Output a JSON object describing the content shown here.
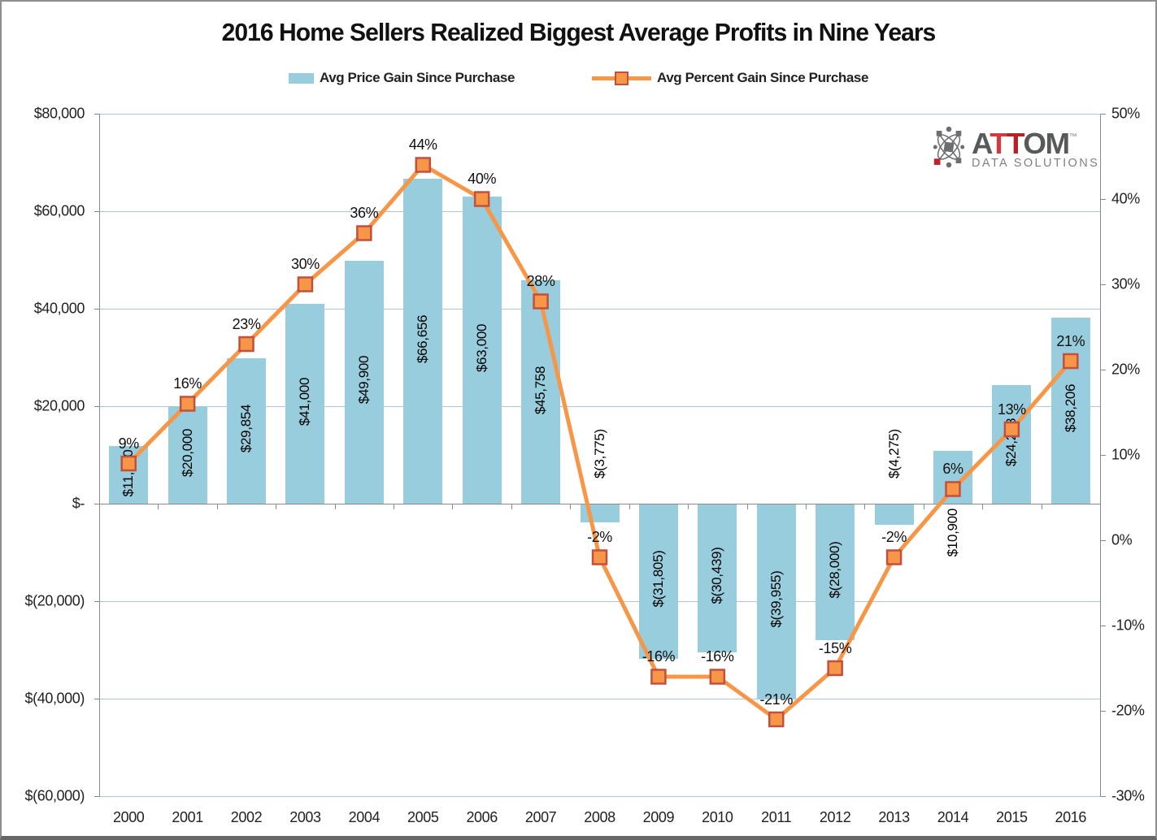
{
  "title": "2016 Home Sellers Realized Biggest Average Profits in Nine Years",
  "legend": {
    "items": [
      {
        "label": "Avg Price Gain Since Purchase",
        "type": "bar"
      },
      {
        "label": "Avg Percent Gain Since Purchase",
        "type": "line"
      }
    ]
  },
  "logo": {
    "l1": "A",
    "l2": "T",
    "l3": "T",
    "l4": "OM",
    "tm": "™",
    "sub": "DATA SOLUTIONS"
  },
  "colors": {
    "bar": "#97CDDC",
    "line": "#F79646",
    "marker_fill": "#F79646",
    "marker_border": "#C1503E",
    "gridline": "#AFC3E2",
    "axis": "#8A8A8A",
    "logo_gray": "#6D6E71",
    "logo_red": "#C42127"
  },
  "chart_data": {
    "type": "combo-bar-line",
    "title": "2016 Home Sellers Realized Biggest Average Profits in Nine Years",
    "categories": [
      "2000",
      "2001",
      "2002",
      "2003",
      "2004",
      "2005",
      "2006",
      "2007",
      "2008",
      "2009",
      "2010",
      "2011",
      "2012",
      "2013",
      "2014",
      "2015",
      "2016"
    ],
    "series": [
      {
        "name": "Avg Price Gain Since Purchase",
        "type": "bar",
        "axis": "left",
        "values": [
          11800,
          20000,
          29854,
          41000,
          49900,
          66656,
          63000,
          45758,
          -3775,
          -31805,
          -30439,
          -39955,
          -28000,
          -4275,
          10900,
          24288,
          38206
        ],
        "labels": [
          "$11,800",
          "$20,000",
          "$29,854",
          "$41,000",
          "$49,900",
          "$66,656",
          "$63,000",
          "$45,758",
          "$(3,775)",
          "$(31,805)",
          "$(30,439)",
          "$(39,955)",
          "$(28,000)",
          "$(4,275)",
          "$10,900",
          "$24,288",
          "$38,206"
        ]
      },
      {
        "name": "Avg Percent Gain Since Purchase",
        "type": "line",
        "axis": "right",
        "values": [
          9,
          16,
          23,
          30,
          36,
          44,
          40,
          28,
          -2,
          -16,
          -16,
          -21,
          -15,
          -2,
          6,
          13,
          21
        ],
        "labels": [
          "9%",
          "16%",
          "23%",
          "30%",
          "36%",
          "44%",
          "40%",
          "28%",
          "-2%",
          "-16%",
          "-16%",
          "-21%",
          "-15%",
          "-2%",
          "6%",
          "13%",
          "21%"
        ]
      }
    ],
    "left_axis": {
      "max": 80000,
      "min": -60000,
      "step": 20000,
      "labels": [
        "$80,000",
        "$60,000",
        "$40,000",
        "$20,000",
        "$-",
        "$(20,000)",
        "$(40,000)",
        "$(60,000)"
      ]
    },
    "right_axis": {
      "max": 50,
      "min": -30,
      "step": 10,
      "labels": [
        "50%",
        "40%",
        "30%",
        "20%",
        "10%",
        "0%",
        "-10%",
        "-20%",
        "-30%"
      ]
    },
    "grid": true,
    "legend_position": "top"
  }
}
